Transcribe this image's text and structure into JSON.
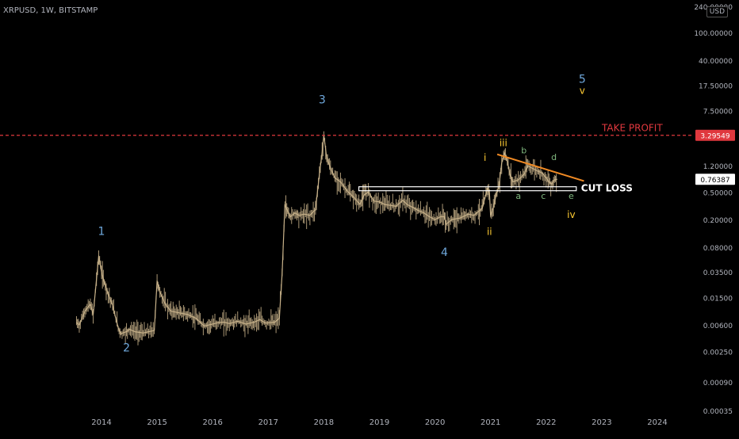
{
  "symbol": "XRPUSD, 1W, BITSTAMP",
  "currency": "USD",
  "colors": {
    "background": "#000000",
    "price": "#c8b28a",
    "wave_primary": "#6fa8dc",
    "wave_minor": "#ffcc33",
    "wave_abc": "#7fb77e",
    "take_profit": "#e0383e",
    "trendline": "#f08a24",
    "support": "#ffffff",
    "axis_text": "#b2b5be"
  },
  "chart_data": {
    "type": "line",
    "title": "",
    "xlabel": "",
    "ylabel": "",
    "y_scale": "log",
    "ylim": [
      0.00035,
      240
    ],
    "xlim": [
      2013.3,
      2024.9
    ],
    "x_ticks": [
      "2014",
      "2015",
      "2016",
      "2017",
      "2018",
      "2019",
      "2020",
      "2021",
      "2022",
      "2023",
      "2024"
    ],
    "y_ticks": [
      "240.00000",
      "100.00000",
      "40.00000",
      "17.50000",
      "7.50000",
      "1.20000",
      "0.50000",
      "0.20000",
      "0.08000",
      "0.03500",
      "0.01500",
      "0.00600",
      "0.00250",
      "0.00090",
      "0.00035"
    ],
    "series": [
      {
        "x": [
          2013.55,
          2013.6,
          2013.7,
          2013.8,
          2013.85,
          2013.95,
          2014.0,
          2014.05,
          2014.12,
          2014.2,
          2014.3,
          2014.35,
          2014.45,
          2014.5,
          2014.6,
          2014.75,
          2014.85,
          2014.95,
          2015.0,
          2015.05,
          2015.15,
          2015.25,
          2015.4,
          2015.55,
          2015.7,
          2015.85,
          2016.0,
          2016.1,
          2016.2,
          2016.3,
          2016.45,
          2016.6,
          2016.75,
          2016.85,
          2016.95,
          2017.05,
          2017.12,
          2017.2,
          2017.25,
          2017.3,
          2017.35,
          2017.4,
          2017.48,
          2017.55,
          2017.65,
          2017.75,
          2017.85,
          2017.92,
          2017.97,
          2018.0,
          2018.05,
          2018.12,
          2018.2,
          2018.3,
          2018.42,
          2018.55,
          2018.65,
          2018.72,
          2018.8,
          2018.9,
          2019.0,
          2019.1,
          2019.2,
          2019.3,
          2019.42,
          2019.5,
          2019.6,
          2019.7,
          2019.8,
          2019.9,
          2020.0,
          2020.1,
          2020.17,
          2020.2,
          2020.3,
          2020.45,
          2020.6,
          2020.7,
          2020.78,
          2020.85,
          2020.9,
          2020.95,
          2020.98,
          2021.0,
          2021.05,
          2021.1,
          2021.15,
          2021.2,
          2021.25,
          2021.3,
          2021.35,
          2021.4,
          2021.5,
          2021.6,
          2021.67,
          2021.75,
          2021.85,
          2021.92,
          2022.0,
          2022.05,
          2022.1,
          2022.15,
          2022.2
        ],
        "y": [
          0.0065,
          0.006,
          0.0095,
          0.012,
          0.0085,
          0.06,
          0.035,
          0.025,
          0.017,
          0.0115,
          0.0055,
          0.0045,
          0.0048,
          0.0052,
          0.0048,
          0.0046,
          0.0048,
          0.005,
          0.026,
          0.018,
          0.012,
          0.0095,
          0.009,
          0.0085,
          0.0075,
          0.0058,
          0.0062,
          0.0065,
          0.0066,
          0.0063,
          0.0068,
          0.0062,
          0.0066,
          0.0072,
          0.0064,
          0.0065,
          0.0066,
          0.0075,
          0.033,
          0.33,
          0.26,
          0.22,
          0.25,
          0.23,
          0.24,
          0.23,
          0.28,
          0.9,
          1.9,
          3.3,
          1.6,
          1.1,
          0.8,
          0.7,
          0.52,
          0.41,
          0.33,
          0.45,
          0.5,
          0.37,
          0.36,
          0.33,
          0.32,
          0.31,
          0.38,
          0.33,
          0.3,
          0.27,
          0.25,
          0.22,
          0.2,
          0.22,
          0.22,
          0.17,
          0.2,
          0.21,
          0.24,
          0.23,
          0.26,
          0.29,
          0.42,
          0.58,
          0.48,
          0.23,
          0.3,
          0.45,
          0.6,
          1.3,
          1.85,
          1.4,
          0.9,
          0.7,
          0.75,
          0.9,
          1.2,
          1.1,
          1.0,
          0.95,
          0.8,
          0.7,
          0.65,
          0.75,
          0.76387
        ]
      }
    ]
  },
  "annotations": {
    "take_profit_label": "TAKE PROFIT",
    "take_profit_value": 3.29549,
    "take_profit_tag": "3.29549",
    "cut_loss_label": "CUT LOSS",
    "support_level": 0.55,
    "current_price_tag": "0.76387",
    "current_price": 0.76387,
    "trendline": [
      [
        2021.12,
        1.75
      ],
      [
        2022.68,
        0.72
      ]
    ],
    "waves": [
      {
        "label": "1",
        "x": 2014.0,
        "y": 0.12,
        "kind": "primary"
      },
      {
        "label": "2",
        "x": 2014.45,
        "y": 0.0025,
        "kind": "primary"
      },
      {
        "label": "3",
        "x": 2017.97,
        "y": 9.5,
        "kind": "primary"
      },
      {
        "label": "4",
        "x": 2020.17,
        "y": 0.06,
        "kind": "primary"
      },
      {
        "label": "5",
        "x": 2022.65,
        "y": 19,
        "kind": "primary"
      },
      {
        "label": "v",
        "x": 2022.65,
        "y": 13,
        "kind": "minor"
      },
      {
        "label": "i",
        "x": 2020.9,
        "y": 1.4,
        "kind": "minor"
      },
      {
        "label": "ii",
        "x": 2020.98,
        "y": 0.12,
        "kind": "minor"
      },
      {
        "label": "iii",
        "x": 2021.23,
        "y": 2.3,
        "kind": "minor"
      },
      {
        "label": "iv",
        "x": 2022.45,
        "y": 0.21,
        "kind": "minor"
      },
      {
        "label": "a",
        "x": 2021.5,
        "y": 0.4,
        "kind": "abc"
      },
      {
        "label": "b",
        "x": 2021.6,
        "y": 1.8,
        "kind": "abc"
      },
      {
        "label": "c",
        "x": 2021.95,
        "y": 0.4,
        "kind": "abc"
      },
      {
        "label": "d",
        "x": 2022.14,
        "y": 1.45,
        "kind": "abc"
      },
      {
        "label": "e",
        "x": 2022.45,
        "y": 0.4,
        "kind": "abc"
      }
    ]
  }
}
